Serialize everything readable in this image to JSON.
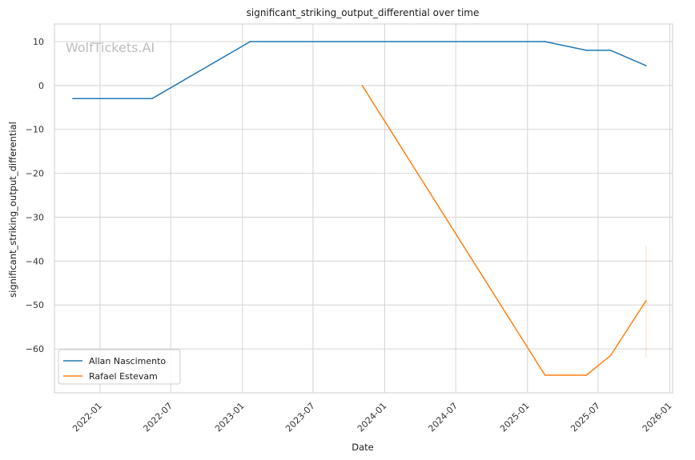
{
  "chart_data": {
    "type": "line",
    "title": "significant_striking_output_differential over time",
    "xlabel": "Date",
    "ylabel": "significant_striking_output_differential",
    "watermark": "WolfTickets.AI",
    "x_ticks": [
      "2022-01",
      "2022-07",
      "2023-01",
      "2023-07",
      "2024-01",
      "2024-07",
      "2025-01",
      "2025-07",
      "2026-01"
    ],
    "y_ticks": [
      10,
      0,
      -10,
      -20,
      -30,
      -40,
      -50,
      -60
    ],
    "y_tick_labels": [
      "10",
      "0",
      "−10",
      "−20",
      "−30",
      "−40",
      "−50",
      "−60"
    ],
    "xlim": [
      "2021-09-06",
      "2026-01-08"
    ],
    "ylim": [
      -70,
      14
    ],
    "grid": true,
    "legend_position": "lower-left",
    "series": [
      {
        "name": "Allan Nascimento",
        "color": "#1f77b4",
        "points": [
          {
            "x": "2021-10-23",
            "y": -3
          },
          {
            "x": "2022-05-14",
            "y": -3
          },
          {
            "x": "2023-01-21",
            "y": 10
          },
          {
            "x": "2025-02-15",
            "y": 10
          },
          {
            "x": "2025-06-01",
            "y": 8
          },
          {
            "x": "2025-08-02",
            "y": 8
          },
          {
            "x": "2025-11-01",
            "y": 4.5
          }
        ]
      },
      {
        "name": "Rafael Estevam",
        "color": "#ff7f0e",
        "points": [
          {
            "x": "2023-11-04",
            "y": 0
          },
          {
            "x": "2025-02-15",
            "y": -66
          },
          {
            "x": "2025-06-01",
            "y": -66
          },
          {
            "x": "2025-08-02",
            "y": -61.5
          },
          {
            "x": "2025-11-01",
            "y": -49
          }
        ],
        "band": {
          "x": "2025-11-01",
          "y_low": -62,
          "y_high": -36.5
        }
      }
    ]
  }
}
